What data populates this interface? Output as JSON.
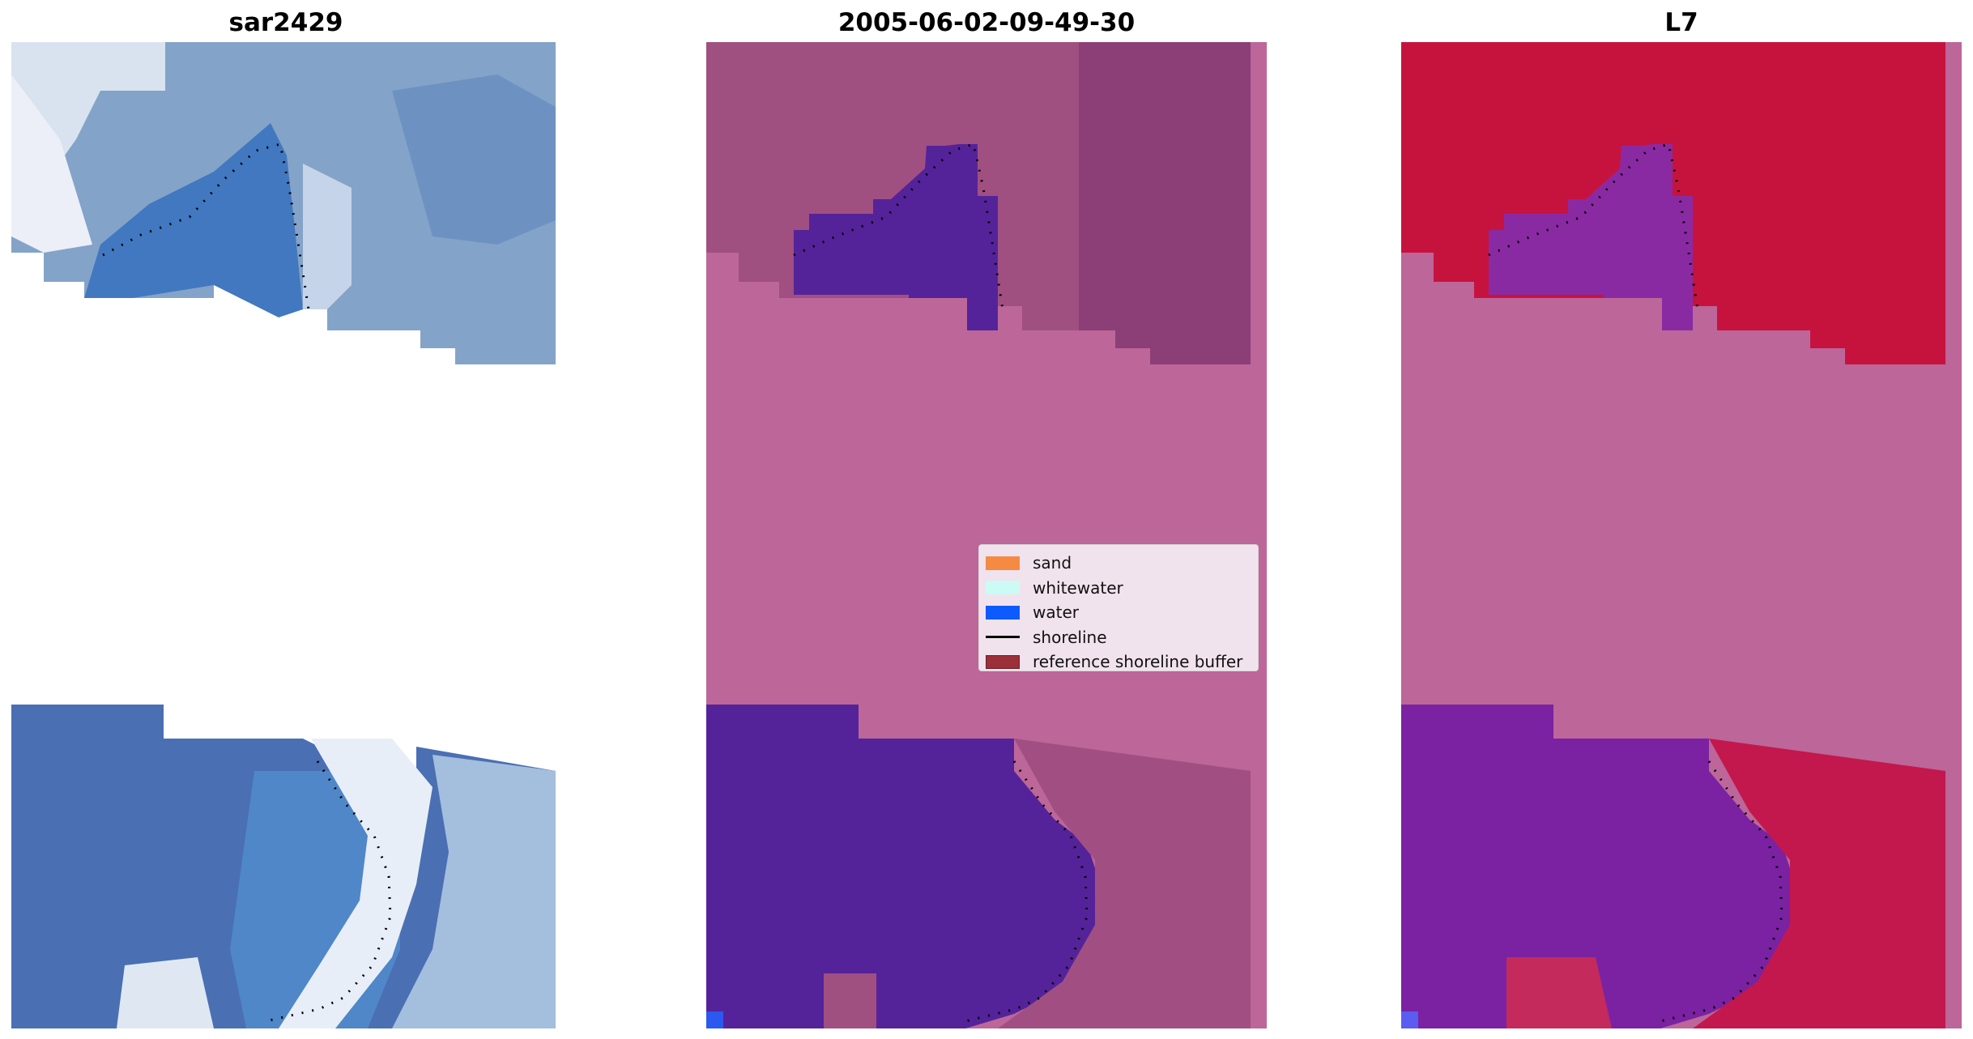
{
  "figure": {
    "panels": [
      {
        "id": "rgb",
        "title": "sar2429"
      },
      {
        "id": "class",
        "title": "2005-06-02-09-49-30"
      },
      {
        "id": "mndwi",
        "title": "L7"
      }
    ]
  },
  "legend": {
    "items": [
      {
        "label": "sand",
        "color": "#f58b43",
        "kind": "patch"
      },
      {
        "label": "whitewater",
        "color": "#ccfaf4",
        "kind": "patch"
      },
      {
        "label": "water",
        "color": "#0d5bff",
        "kind": "patch"
      },
      {
        "label": "shoreline",
        "color": "#000000",
        "kind": "line"
      },
      {
        "label": "reference shoreline buffer",
        "color": "#9b2f3a",
        "kind": "patch"
      }
    ]
  },
  "colors": {
    "background": "#ffffff",
    "buffer_overlay": "#bc6699",
    "water_class": "#54239a",
    "land_class": "#a5507f",
    "mndwi_land": "#c6133e",
    "mndwi_water": "#7a22a2",
    "rgb_water": "#4770b3",
    "rgb_foam": "#e3ecf6"
  }
}
